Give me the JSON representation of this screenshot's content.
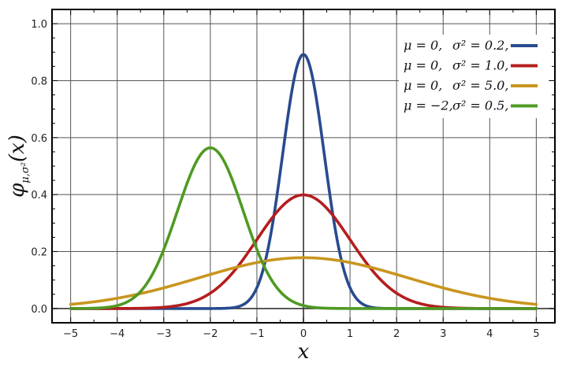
{
  "chart_data": {
    "type": "line",
    "xlabel": "x",
    "ylabel_main": "φ",
    "ylabel_sub": "μ,σ²",
    "ylabel_arg": "(x)",
    "xlim": [
      -5.4,
      5.4
    ],
    "ylim": [
      -0.05,
      1.05
    ],
    "x_ticks": [
      -5,
      -4,
      -3,
      -2,
      -1,
      0,
      1,
      2,
      3,
      4,
      5
    ],
    "x_tick_labels": [
      "−5",
      "−4",
      "−3",
      "−2",
      "−1",
      "0",
      "1",
      "2",
      "3",
      "4",
      "5"
    ],
    "y_ticks": [
      0.0,
      0.2,
      0.4,
      0.6,
      0.8,
      1.0
    ],
    "y_tick_labels": [
      "0.0",
      "0.2",
      "0.4",
      "0.6",
      "0.8",
      "1.0"
    ],
    "grid": true,
    "legend_position": "top-right",
    "series": [
      {
        "name": "μ = 0,   σ² = 0.2,",
        "mu_label": "μ = 0,",
        "sigma_label": "σ² = 0.2,",
        "mu": 0,
        "variance": 0.2,
        "color": "#284b8f"
      },
      {
        "name": "μ = 0,   σ² = 1.0,",
        "mu_label": "μ = 0,",
        "sigma_label": "σ² = 1.0,",
        "mu": 0,
        "variance": 1.0,
        "color": "#b51d1d"
      },
      {
        "name": "μ = 0,   σ² = 5.0,",
        "mu_label": "μ = 0,",
        "sigma_label": "σ² = 5.0,",
        "mu": 0,
        "variance": 5.0,
        "color": "#c8961e"
      },
      {
        "name": "μ = −2,  σ² = 0.5,",
        "mu_label": "μ = −2,",
        "sigma_label": "σ² = 0.5,",
        "mu": -2,
        "variance": 0.5,
        "color": "#4f9a23"
      }
    ]
  }
}
